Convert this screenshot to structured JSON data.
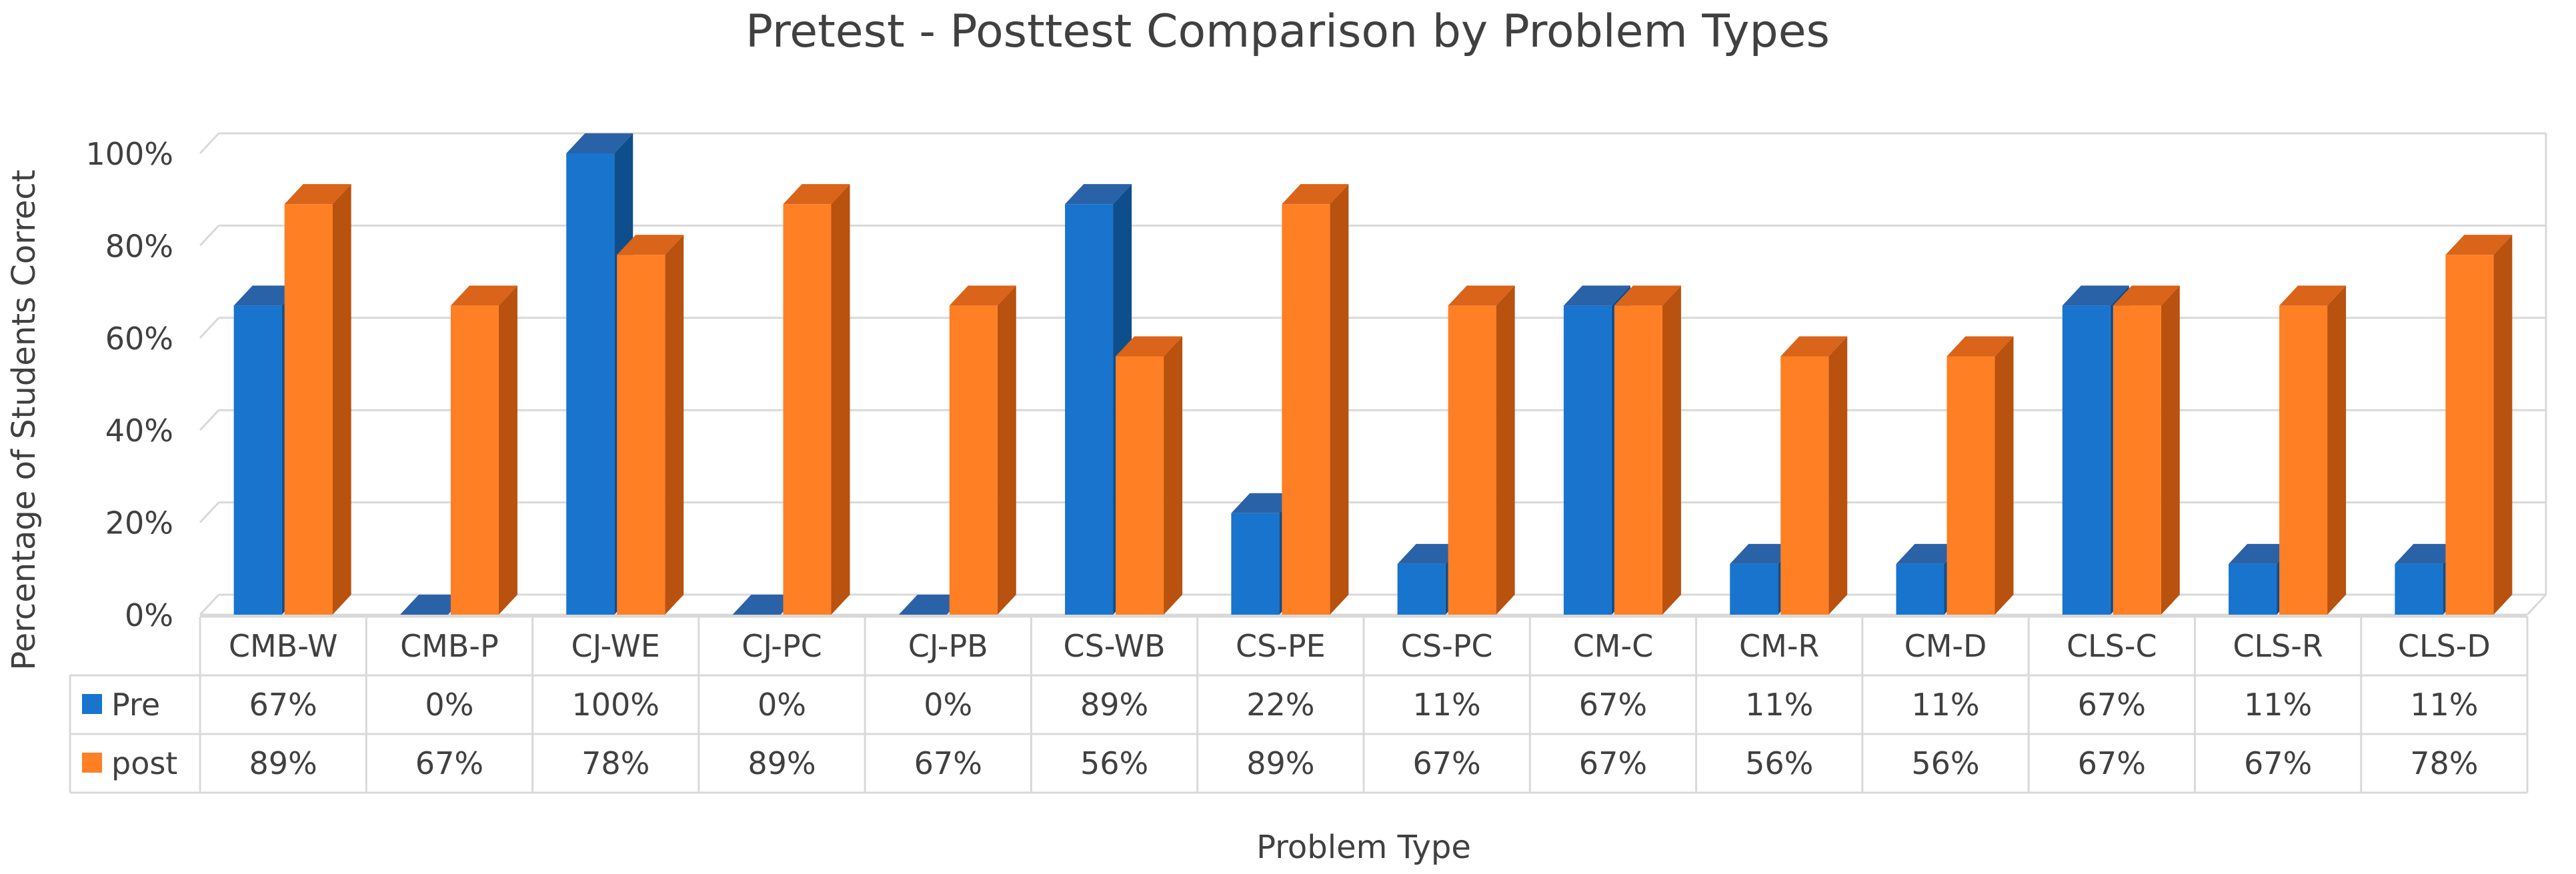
{
  "chart_data": {
    "type": "bar",
    "style": "3d-clustered-column-with-data-table",
    "title": "Pretest - Posttest Comparison by Problem Types",
    "xlabel": "Problem Type",
    "ylabel": "Percentage of Students Correct",
    "ylim": [
      0,
      100
    ],
    "ytick_values": [
      0,
      20,
      40,
      60,
      80,
      100
    ],
    "yticks": [
      "0%",
      "20%",
      "40%",
      "60%",
      "80%",
      "100%"
    ],
    "grid": true,
    "categories": [
      "CMB-W",
      "CMB-P",
      "CJ-WE",
      "CJ-PC",
      "CJ-PB",
      "CS-WB",
      "CS-PE",
      "CS-PC",
      "CM-C",
      "CM-R",
      "CM-D",
      "CLS-C",
      "CLS-R",
      "CLS-D"
    ],
    "series": [
      {
        "name": "Pre",
        "color": "#1874CD",
        "side_color": "#0F4E8C",
        "top_color": "#2A62A8",
        "values": [
          67,
          0,
          100,
          0,
          0,
          89,
          22,
          11,
          67,
          11,
          11,
          67,
          11,
          11
        ],
        "labels": [
          "67%",
          "0%",
          "100%",
          "0%",
          "0%",
          "89%",
          "22%",
          "11%",
          "67%",
          "11%",
          "11%",
          "67%",
          "11%",
          "11%"
        ]
      },
      {
        "name": "post",
        "color": "#FF7F24",
        "side_color": "#B8520E",
        "top_color": "#D9641A",
        "values": [
          89,
          67,
          78,
          89,
          67,
          56,
          89,
          67,
          67,
          56,
          56,
          67,
          67,
          78
        ],
        "labels": [
          "89%",
          "67%",
          "78%",
          "89%",
          "67%",
          "56%",
          "89%",
          "67%",
          "67%",
          "56%",
          "56%",
          "67%",
          "67%",
          "78%"
        ]
      }
    ]
  }
}
